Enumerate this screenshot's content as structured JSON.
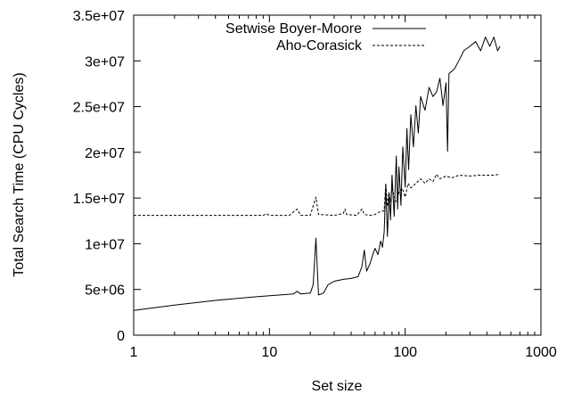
{
  "chart_data": {
    "type": "line",
    "title": "",
    "xlabel": "Set size",
    "ylabel": "Total Search Time (CPU Cycles)",
    "xscale": "log",
    "xlim": [
      1,
      1000
    ],
    "ylim": [
      0,
      35000000
    ],
    "x_ticks": [
      {
        "value": 1,
        "label": "1"
      },
      {
        "value": 10,
        "label": "10"
      },
      {
        "value": 100,
        "label": "100"
      },
      {
        "value": 1000,
        "label": "1000"
      }
    ],
    "y_ticks": [
      {
        "value": 0,
        "label": "0"
      },
      {
        "value": 5000000,
        "label": "5e+06"
      },
      {
        "value": 10000000,
        "label": "1e+07"
      },
      {
        "value": 15000000,
        "label": "1.5e+07"
      },
      {
        "value": 20000000,
        "label": "2e+07"
      },
      {
        "value": 25000000,
        "label": "2.5e+07"
      },
      {
        "value": 30000000,
        "label": "3e+07"
      },
      {
        "value": 35000000,
        "label": "3.5e+07"
      }
    ],
    "grid": false,
    "legend_position": "top-right",
    "series": [
      {
        "name": "Setwise Boyer-Moore",
        "style": "solid",
        "color": "#000000",
        "points": [
          [
            1,
            2700000
          ],
          [
            2,
            3300000
          ],
          [
            4,
            3800000
          ],
          [
            8,
            4200000
          ],
          [
            12,
            4400000
          ],
          [
            15,
            4500000
          ],
          [
            16,
            4800000
          ],
          [
            17,
            4500000
          ],
          [
            20,
            4600000
          ],
          [
            21,
            5500000
          ],
          [
            22,
            10600000
          ],
          [
            23,
            4400000
          ],
          [
            25,
            4600000
          ],
          [
            27,
            5500000
          ],
          [
            30,
            5900000
          ],
          [
            35,
            6100000
          ],
          [
            40,
            6200000
          ],
          [
            45,
            6400000
          ],
          [
            48,
            7500000
          ],
          [
            50,
            9300000
          ],
          [
            52,
            7000000
          ],
          [
            55,
            7800000
          ],
          [
            58,
            8900000
          ],
          [
            60,
            9500000
          ],
          [
            63,
            8800000
          ],
          [
            66,
            10300000
          ],
          [
            68,
            9600000
          ],
          [
            70,
            11300000
          ],
          [
            72,
            16500000
          ],
          [
            74,
            10800000
          ],
          [
            76,
            15600000
          ],
          [
            78,
            12600000
          ],
          [
            80,
            17500000
          ],
          [
            83,
            13000000
          ],
          [
            86,
            19600000
          ],
          [
            88,
            13800000
          ],
          [
            90,
            18400000
          ],
          [
            93,
            14200000
          ],
          [
            96,
            20600000
          ],
          [
            100,
            16200000
          ],
          [
            103,
            22600000
          ],
          [
            106,
            18100000
          ],
          [
            110,
            24100000
          ],
          [
            115,
            20600000
          ],
          [
            120,
            25100000
          ],
          [
            125,
            22100000
          ],
          [
            130,
            26100000
          ],
          [
            140,
            24600000
          ],
          [
            150,
            27100000
          ],
          [
            160,
            26100000
          ],
          [
            170,
            26600000
          ],
          [
            180,
            28100000
          ],
          [
            190,
            25100000
          ],
          [
            200,
            27600000
          ],
          [
            205,
            20100000
          ],
          [
            210,
            28600000
          ],
          [
            230,
            29100000
          ],
          [
            250,
            30100000
          ],
          [
            270,
            31100000
          ],
          [
            300,
            31600000
          ],
          [
            330,
            32100000
          ],
          [
            360,
            31100000
          ],
          [
            390,
            32600000
          ],
          [
            420,
            31600000
          ],
          [
            450,
            32600000
          ],
          [
            480,
            31100000
          ],
          [
            500,
            31600000
          ]
        ]
      },
      {
        "name": "Aho-Corasick",
        "style": "dashed",
        "color": "#000000",
        "points": [
          [
            1,
            13100000
          ],
          [
            5,
            13100000
          ],
          [
            9,
            13100000
          ],
          [
            9.5,
            13300000
          ],
          [
            10,
            13100000
          ],
          [
            14,
            13100000
          ],
          [
            16,
            13800000
          ],
          [
            17,
            13100000
          ],
          [
            20,
            13100000
          ],
          [
            22,
            15100000
          ],
          [
            23,
            13200000
          ],
          [
            30,
            13100000
          ],
          [
            35,
            13300000
          ],
          [
            36,
            13800000
          ],
          [
            37,
            13200000
          ],
          [
            44,
            13100000
          ],
          [
            48,
            13800000
          ],
          [
            50,
            13200000
          ],
          [
            55,
            13100000
          ],
          [
            60,
            13200000
          ],
          [
            65,
            13500000
          ],
          [
            70,
            13600000
          ],
          [
            72,
            16600000
          ],
          [
            74,
            14100000
          ],
          [
            76,
            15600000
          ],
          [
            78,
            14600000
          ],
          [
            80,
            16100000
          ],
          [
            85,
            14600000
          ],
          [
            90,
            15600000
          ],
          [
            95,
            16100000
          ],
          [
            100,
            15100000
          ],
          [
            105,
            16600000
          ],
          [
            110,
            16100000
          ],
          [
            120,
            16600000
          ],
          [
            130,
            17100000
          ],
          [
            140,
            16600000
          ],
          [
            150,
            17100000
          ],
          [
            160,
            16800000
          ],
          [
            170,
            17600000
          ],
          [
            180,
            17100000
          ],
          [
            200,
            17400000
          ],
          [
            220,
            17200000
          ],
          [
            250,
            17500000
          ],
          [
            300,
            17400000
          ],
          [
            350,
            17500000
          ],
          [
            400,
            17500000
          ],
          [
            450,
            17500000
          ],
          [
            500,
            17600000
          ]
        ]
      }
    ]
  }
}
